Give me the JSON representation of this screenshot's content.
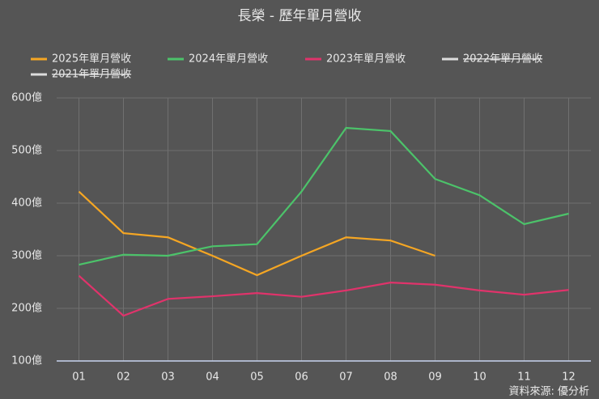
{
  "chart_data": {
    "type": "line",
    "title": "長榮 - 歷年單月營收",
    "categories": [
      "01",
      "02",
      "03",
      "04",
      "05",
      "06",
      "07",
      "08",
      "09",
      "10",
      "11",
      "12"
    ],
    "series": [
      {
        "name": "2025年單月營收",
        "color": "#f5a623",
        "values": [
          422,
          343,
          335,
          300,
          263,
          300,
          335,
          329,
          300,
          null,
          null,
          null
        ]
      },
      {
        "name": "2024年單月營收",
        "color": "#4cc36a",
        "values": [
          283,
          302,
          300,
          318,
          322,
          422,
          543,
          537,
          446,
          415,
          360,
          380
        ]
      },
      {
        "name": "2023年單月營收",
        "color": "#e0336b",
        "values": [
          262,
          186,
          218,
          223,
          229,
          222,
          234,
          249,
          245,
          234,
          226,
          235
        ]
      },
      {
        "name": "2022年單月營收",
        "color": "#dddddd",
        "hidden": true,
        "values": [
          null,
          null,
          null,
          null,
          null,
          null,
          null,
          null,
          null,
          null,
          null,
          null
        ]
      },
      {
        "name": "2021年單月營收",
        "color": "#dddddd",
        "hidden": true,
        "values": [
          null,
          null,
          null,
          null,
          null,
          null,
          null,
          null,
          null,
          null,
          null,
          null
        ]
      }
    ],
    "ylim": [
      100,
      600
    ],
    "yticks": [
      {
        "value": 100,
        "label": "100億"
      },
      {
        "value": 200,
        "label": "200億"
      },
      {
        "value": 300,
        "label": "300億"
      },
      {
        "value": 400,
        "label": "400億"
      },
      {
        "value": 500,
        "label": "500億"
      },
      {
        "value": 600,
        "label": "600億"
      }
    ],
    "grid": true,
    "source": "資料來源: 優分析"
  }
}
